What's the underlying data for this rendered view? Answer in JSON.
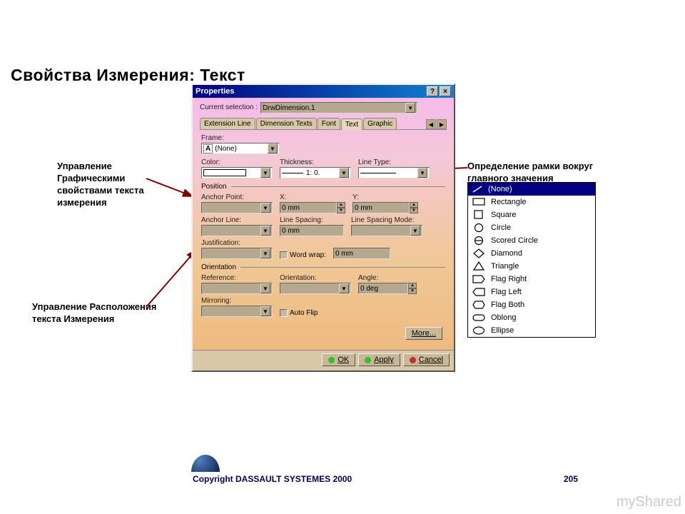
{
  "slide_title": "Свойства Измерения: Текст",
  "annotations": {
    "left1": "Управление Графическими свойствами текста измерения",
    "left2": "Управление Расположения текста Измерения",
    "right": "Определение рамки вокруг главного значения"
  },
  "copyright": "Copyright DASSAULT SYSTEMES 2000",
  "page_number": "205",
  "watermark": "myShared",
  "dialog": {
    "title": "Properties",
    "current_selection_label": "Current selection :",
    "current_selection_value": "DrwDimension.1",
    "tabs": [
      "Extension Line",
      "Dimension Texts",
      "Font",
      "Text",
      "Graphic"
    ],
    "active_tab": "Text",
    "frame": {
      "label": "Frame:",
      "value": "(None)"
    },
    "graphics": {
      "color_label": "Color:",
      "thickness_label": "Thickness:",
      "thickness_value": "1: 0.",
      "linetype_label": "Line Type:"
    },
    "position": {
      "section": "Position",
      "anchor_point_label": "Anchor Point:",
      "x_label": "X:",
      "x_value": "0 mm",
      "y_label": "Y:",
      "y_value": "0 mm",
      "anchor_line_label": "Anchor Line:",
      "line_spacing_label": "Line Spacing:",
      "line_spacing_value": "0 mm",
      "line_spacing_mode_label": "Line Spacing Mode:",
      "justification_label": "Justification:",
      "word_wrap_label": "Word wrap:",
      "word_wrap_value": "0 mm"
    },
    "orientation": {
      "section": "Orientation",
      "reference_label": "Reference:",
      "orientation_label": "Orientation:",
      "angle_label": "Angle:",
      "angle_value": "0 deg",
      "mirroring_label": "Mirroring:",
      "auto_flip_label": "Auto Flip"
    },
    "buttons": {
      "more": "More...",
      "ok": "OK",
      "apply": "Apply",
      "cancel": "Cancel"
    },
    "button_colors": {
      "ok": "#30c030",
      "apply": "#30c030",
      "cancel": "#c03030"
    }
  },
  "popup": {
    "selected": "(None)",
    "items": [
      {
        "icon": "none",
        "label": "(None)"
      },
      {
        "icon": "rectangle",
        "label": "Rectangle"
      },
      {
        "icon": "square",
        "label": "Square"
      },
      {
        "icon": "circle",
        "label": "Circle"
      },
      {
        "icon": "scored-circle",
        "label": "Scored Circle"
      },
      {
        "icon": "diamond",
        "label": "Diamond"
      },
      {
        "icon": "triangle",
        "label": "Triangle"
      },
      {
        "icon": "flag-right",
        "label": "Flag Right"
      },
      {
        "icon": "flag-left",
        "label": "Flag Left"
      },
      {
        "icon": "flag-both",
        "label": "Flag Both"
      },
      {
        "icon": "oblong",
        "label": "Oblong"
      },
      {
        "icon": "ellipse",
        "label": "Ellipse"
      }
    ]
  },
  "colors": {
    "titlebar": "#000080",
    "arrow": "#800000"
  }
}
